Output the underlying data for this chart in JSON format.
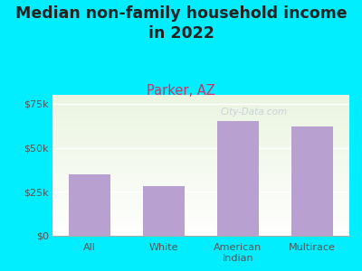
{
  "title": "Median non-family household income\nin 2022",
  "subtitle": "Parker, AZ",
  "categories": [
    "All",
    "White",
    "American\nIndian",
    "Multirace"
  ],
  "values": [
    35000,
    28000,
    65000,
    62000
  ],
  "bar_color": "#b8a0d0",
  "ylim": [
    0,
    80000
  ],
  "ytick_vals": [
    0,
    25000,
    50000,
    75000
  ],
  "ytick_labels": [
    "$0",
    "$25k",
    "$50k",
    "$75k"
  ],
  "outer_bg": "#00eeff",
  "title_fontsize": 12.5,
  "subtitle_fontsize": 10.5,
  "subtitle_color": "#cc3366",
  "watermark": "City-Data.com",
  "grid_color": "#d8e8c8",
  "tick_label_color": "#555555"
}
